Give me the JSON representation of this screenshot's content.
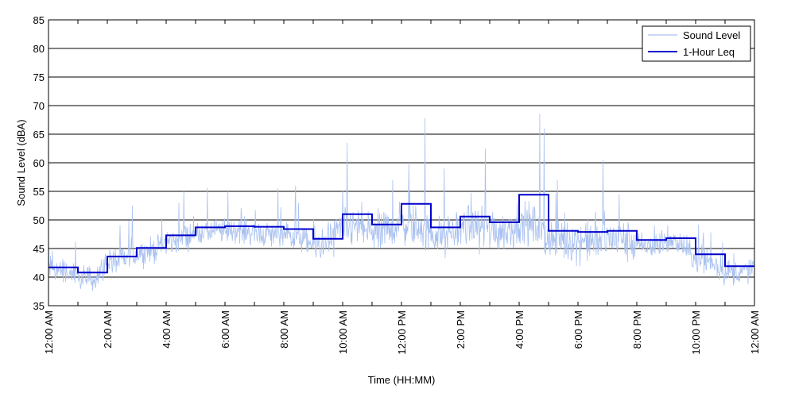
{
  "chart_data": {
    "type": "line",
    "title": "",
    "xlabel": "Time (HH:MM)",
    "ylabel": "Sound Level (dBA)",
    "xlim": [
      0,
      24
    ],
    "ylim": [
      35,
      85
    ],
    "y_ticks": [
      35,
      40,
      45,
      50,
      55,
      60,
      65,
      70,
      75,
      80,
      85
    ],
    "x_ticks": [
      0,
      2,
      4,
      6,
      8,
      10,
      12,
      14,
      16,
      18,
      20,
      22,
      24
    ],
    "x_tick_labels": [
      "12:00 AM",
      "2:00 AM",
      "4:00 AM",
      "6:00 AM",
      "8:00 AM",
      "10:00 AM",
      "12:00 PM",
      "2:00 PM",
      "4:00 PM",
      "6:00 PM",
      "8:00 PM",
      "10:00 PM",
      "12:00 AM"
    ],
    "grid": "horizontal",
    "legend_position": "top-right",
    "colors": {
      "sound_level": "#a9c1f0",
      "leq": "#0000cc"
    },
    "series": [
      {
        "name": "Sound Level",
        "sampling": "approx. 1-minute noisy samples; hourly typical levels",
        "x": [
          0,
          0.5,
          1,
          1.5,
          2,
          2.5,
          3,
          3.5,
          4,
          4.5,
          5,
          5.5,
          6,
          6.5,
          7,
          7.5,
          8,
          8.5,
          9,
          9.5,
          10,
          10.5,
          11,
          11.5,
          12,
          12.5,
          13,
          13.5,
          14,
          14.5,
          15,
          15.5,
          16,
          16.5,
          17,
          17.5,
          18,
          18.5,
          19,
          19.5,
          20,
          20.5,
          21,
          21.5,
          22,
          22.5,
          23,
          23.5,
          24
        ],
        "y": [
          41.5,
          41.2,
          39.8,
          39.5,
          42.5,
          43.0,
          44.2,
          44.6,
          46.0,
          46.5,
          47.8,
          48.0,
          48.0,
          48.2,
          47.8,
          47.5,
          47.3,
          47.0,
          45.5,
          45.8,
          48.5,
          48.8,
          47.8,
          47.5,
          49.5,
          49.0,
          47.5,
          47.0,
          48.8,
          49.0,
          48.5,
          48.0,
          49.5,
          49.0,
          46.8,
          46.5,
          46.5,
          46.3,
          46.8,
          46.5,
          45.5,
          45.3,
          46.0,
          45.8,
          43.0,
          42.8,
          41.0,
          40.8,
          41.5
        ],
        "spikes": [
          {
            "x": 2.85,
            "y": 52.5
          },
          {
            "x": 10.15,
            "y": 63.5
          },
          {
            "x": 11.7,
            "y": 57.0
          },
          {
            "x": 12.25,
            "y": 60.0
          },
          {
            "x": 12.8,
            "y": 67.8
          },
          {
            "x": 13.45,
            "y": 59.0
          },
          {
            "x": 14.85,
            "y": 62.5
          },
          {
            "x": 16.7,
            "y": 68.5
          },
          {
            "x": 16.85,
            "y": 66.0
          },
          {
            "x": 17.3,
            "y": 57.0
          },
          {
            "x": 18.85,
            "y": 60.5
          },
          {
            "x": 19.4,
            "y": 54.5
          },
          {
            "x": 6.1,
            "y": 55.0
          },
          {
            "x": 7.8,
            "y": 55.5
          },
          {
            "x": 8.4,
            "y": 56.0
          },
          {
            "x": 4.6,
            "y": 55.0
          }
        ]
      },
      {
        "name": "1-Hour Leq",
        "step": true,
        "x": [
          0,
          1,
          2,
          3,
          4,
          5,
          6,
          7,
          8,
          9,
          10,
          11,
          12,
          13,
          14,
          15,
          16,
          17,
          18,
          19,
          20,
          21,
          22,
          23
        ],
        "y": [
          41.7,
          40.8,
          43.6,
          45.1,
          47.3,
          48.7,
          48.9,
          48.8,
          48.4,
          46.7,
          51.0,
          49.2,
          52.8,
          48.7,
          50.6,
          49.6,
          54.4,
          48.1,
          47.9,
          48.1,
          46.5,
          46.8,
          44.0,
          41.9
        ]
      }
    ]
  }
}
